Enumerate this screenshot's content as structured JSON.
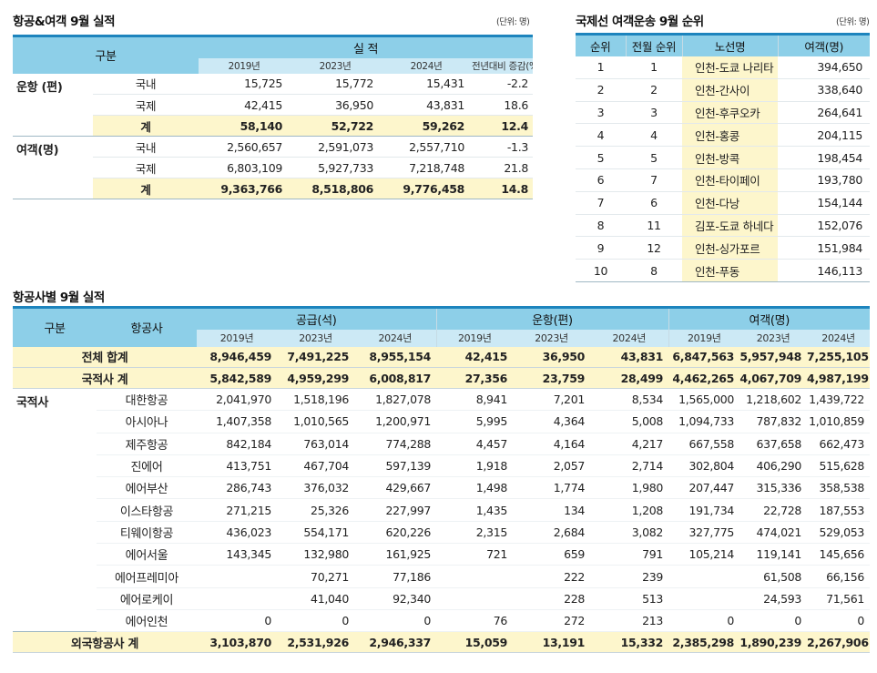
{
  "t1": {
    "title": "항공&여객 9월 실적",
    "unit": "(단위: 명)",
    "h_group": "구분",
    "h_result": "실 적",
    "years": [
      "2019년",
      "2023년",
      "2024년",
      "전년대비 증감(%)"
    ],
    "rows": [
      {
        "group": "운항 (편)",
        "sub": "국내",
        "v": [
          "15,725",
          "15,772",
          "15,431",
          "-2.2"
        ]
      },
      {
        "group": "",
        "sub": "국제",
        "v": [
          "42,415",
          "36,950",
          "43,831",
          "18.6"
        ]
      },
      {
        "group": "",
        "sub": "계",
        "v": [
          "58,140",
          "52,722",
          "59,262",
          "12.4"
        ]
      },
      {
        "group": "여객(명)",
        "sub": "국내",
        "v": [
          "2,560,657",
          "2,591,073",
          "2,557,710",
          "-1.3"
        ]
      },
      {
        "group": "",
        "sub": "국제",
        "v": [
          "6,803,109",
          "5,927,733",
          "7,218,748",
          "21.8"
        ]
      },
      {
        "group": "",
        "sub": "계",
        "v": [
          "9,363,766",
          "8,518,806",
          "9,776,458",
          "14.8"
        ]
      }
    ]
  },
  "t2": {
    "title": "국제선 여객운송 9월 순위",
    "unit": "(단위: 명)",
    "headers": [
      "순위",
      "전월 순위",
      "노선명",
      "여객(명)"
    ],
    "rows": [
      [
        "1",
        "1",
        "인천-도쿄 나리타",
        "394,650"
      ],
      [
        "2",
        "2",
        "인천-간사이",
        "338,640"
      ],
      [
        "3",
        "3",
        "인천-후쿠오카",
        "264,641"
      ],
      [
        "4",
        "4",
        "인천-홍콩",
        "204,115"
      ],
      [
        "5",
        "5",
        "인천-방콕",
        "198,454"
      ],
      [
        "6",
        "7",
        "인천-타이페이",
        "193,780"
      ],
      [
        "7",
        "6",
        "인천-다낭",
        "154,144"
      ],
      [
        "8",
        "11",
        "김포-도쿄 하네다",
        "152,076"
      ],
      [
        "9",
        "12",
        "인천-싱가포르",
        "151,984"
      ],
      [
        "10",
        "8",
        "인천-푸동",
        "146,113"
      ]
    ]
  },
  "t3": {
    "title": "항공사별 9월 실적",
    "h_group": "구분",
    "h_airline": "항공사",
    "h_supply": "공급(석)",
    "h_flights": "운항(편)",
    "h_pax": "여객(명)",
    "years": [
      "2019년",
      "2023년",
      "2024년",
      "2019년",
      "2023년",
      "2024년",
      "2019년",
      "2023년",
      "2024년"
    ],
    "total": {
      "label": "전체 합계",
      "v": [
        "8,946,459",
        "7,491,225",
        "8,955,154",
        "42,415",
        "36,950",
        "43,831",
        "6,847,563",
        "5,957,948",
        "7,255,105"
      ]
    },
    "national_total": {
      "label": "국적사 계",
      "v": [
        "5,842,589",
        "4,959,299",
        "6,008,817",
        "27,356",
        "23,759",
        "28,499",
        "4,462,265",
        "4,067,709",
        "4,987,199"
      ]
    },
    "national_group": "국적사",
    "airlines": [
      {
        "name": "대한항공",
        "v": [
          "2,041,970",
          "1,518,196",
          "1,827,078",
          "8,941",
          "7,201",
          "8,534",
          "1,565,000",
          "1,218,602",
          "1,439,722"
        ]
      },
      {
        "name": "아시아나",
        "v": [
          "1,407,358",
          "1,010,565",
          "1,200,971",
          "5,995",
          "4,364",
          "5,008",
          "1,094,733",
          "787,832",
          "1,010,859"
        ]
      },
      {
        "name": "제주항공",
        "v": [
          "842,184",
          "763,014",
          "774,288",
          "4,457",
          "4,164",
          "4,217",
          "667,558",
          "637,658",
          "662,473"
        ]
      },
      {
        "name": "진에어",
        "v": [
          "413,751",
          "467,704",
          "597,139",
          "1,918",
          "2,057",
          "2,714",
          "302,804",
          "406,290",
          "515,628"
        ]
      },
      {
        "name": "에어부산",
        "v": [
          "286,743",
          "376,032",
          "429,667",
          "1,498",
          "1,774",
          "1,980",
          "207,447",
          "315,336",
          "358,538"
        ]
      },
      {
        "name": "이스타항공",
        "v": [
          "271,215",
          "25,326",
          "227,997",
          "1,435",
          "134",
          "1,208",
          "191,734",
          "22,728",
          "187,553"
        ]
      },
      {
        "name": "티웨이항공",
        "v": [
          "436,023",
          "554,171",
          "620,226",
          "2,315",
          "2,684",
          "3,082",
          "327,775",
          "474,021",
          "529,053"
        ]
      },
      {
        "name": "에어서울",
        "v": [
          "143,345",
          "132,980",
          "161,925",
          "721",
          "659",
          "791",
          "105,214",
          "119,141",
          "145,656"
        ]
      },
      {
        "name": "에어프레미아",
        "v": [
          "",
          "70,271",
          "77,186",
          "",
          "222",
          "239",
          "",
          "61,508",
          "66,156"
        ]
      },
      {
        "name": "에어로케이",
        "v": [
          "",
          "41,040",
          "92,340",
          "",
          "228",
          "513",
          "",
          "24,593",
          "71,561"
        ]
      },
      {
        "name": "에어인천",
        "v": [
          "0",
          "0",
          "0",
          "76",
          "272",
          "213",
          "0",
          "0",
          "0"
        ]
      }
    ],
    "foreign_total": {
      "label": "외국항공사 계",
      "v": [
        "3,103,870",
        "2,531,926",
        "2,946,337",
        "15,059",
        "13,191",
        "15,332",
        "2,385,298",
        "1,890,239",
        "2,267,906"
      ]
    }
  }
}
